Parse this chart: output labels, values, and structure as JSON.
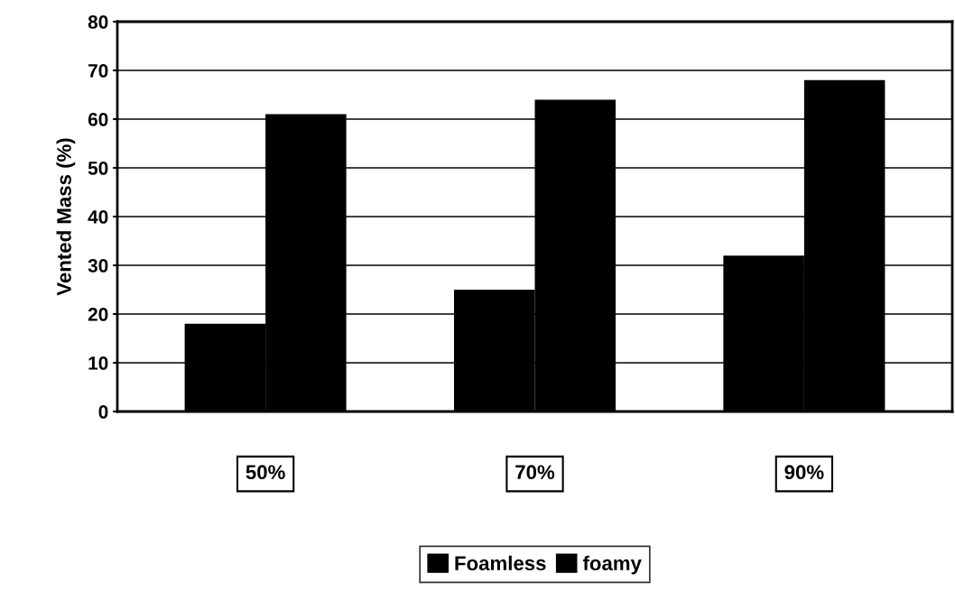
{
  "chart_data": {
    "type": "bar",
    "ylabel": "Vented Mass (%)",
    "categories": [
      "50%",
      "70%",
      "90%"
    ],
    "series": [
      {
        "name": "Foamless",
        "color": "#000000",
        "values": [
          18,
          25,
          32
        ]
      },
      {
        "name": "foamy",
        "color": "#000000",
        "values": [
          61,
          64,
          68
        ]
      }
    ],
    "ylim": [
      0,
      80
    ],
    "yticks": [
      0,
      10,
      20,
      30,
      40,
      50,
      60,
      70,
      80
    ],
    "grid": "y",
    "legend": "bottom"
  }
}
